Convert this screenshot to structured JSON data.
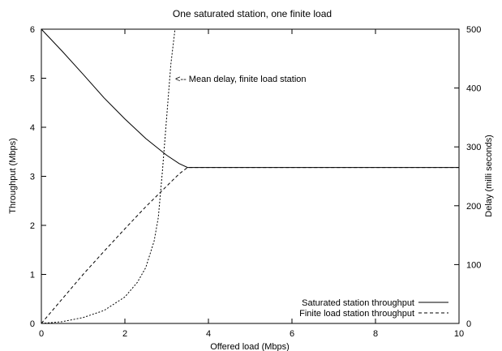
{
  "chart_data": {
    "type": "line",
    "title": "One saturated station, one finite load",
    "xlabel": "Offered load (Mbps)",
    "ylabel": "Throughput (Mbps)",
    "y2label": "Delay (milli seconds)",
    "xlim": [
      0,
      10
    ],
    "ylim": [
      0,
      6
    ],
    "y2lim": [
      0,
      500
    ],
    "xticks": [
      "0",
      "2",
      "4",
      "6",
      "8",
      "10"
    ],
    "yticks": [
      "0",
      "1",
      "2",
      "3",
      "4",
      "5",
      "6"
    ],
    "y2ticks": [
      "0",
      "100",
      "200",
      "300",
      "400",
      "500"
    ],
    "grid": false,
    "legend_position": "bottom-right",
    "annotation": "<-- Mean delay, finite load station",
    "series": [
      {
        "name": "Saturated station throughput",
        "axis": "left",
        "style": "solid",
        "x": [
          0,
          0.5,
          1.0,
          1.5,
          2.0,
          2.5,
          3.0,
          3.3,
          3.5,
          4,
          6,
          8,
          10
        ],
        "y": [
          6.0,
          5.55,
          5.08,
          4.6,
          4.17,
          3.77,
          3.43,
          3.26,
          3.18,
          3.18,
          3.18,
          3.18,
          3.18
        ]
      },
      {
        "name": "Finite load station throughput",
        "axis": "left",
        "style": "dashed",
        "x": [
          0,
          0.5,
          1.0,
          1.5,
          2.0,
          2.5,
          3.0,
          3.3,
          3.5,
          4,
          6,
          8,
          10
        ],
        "y": [
          0,
          0.5,
          1.0,
          1.47,
          1.93,
          2.38,
          2.8,
          3.05,
          3.18,
          3.18,
          3.18,
          3.18,
          3.18
        ]
      },
      {
        "name": "",
        "axis": "right",
        "style": "dotted",
        "x": [
          0,
          0.5,
          1.0,
          1.5,
          2.0,
          2.3,
          2.5,
          2.7,
          2.8,
          2.9,
          3.0,
          3.1,
          3.2
        ],
        "y": [
          0,
          3,
          10,
          22,
          45,
          70,
          95,
          140,
          180,
          260,
          350,
          440,
          500
        ]
      }
    ]
  }
}
